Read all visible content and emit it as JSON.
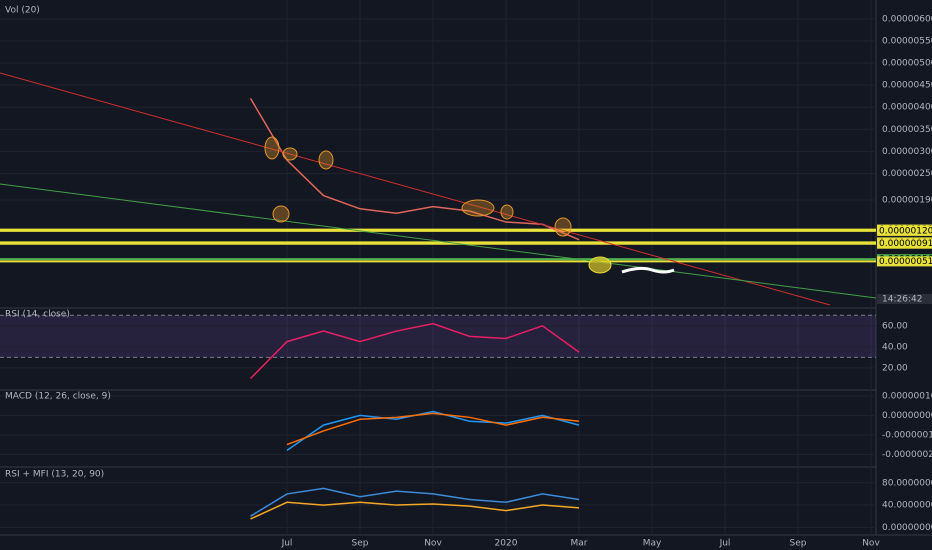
{
  "chart_data": [
    {
      "type": "line",
      "title": "Vol (20)",
      "countdown": "14:26:42",
      "categories": [
        null,
        "Jul",
        null,
        "Sep",
        null,
        "Nov",
        null,
        "2020",
        null,
        "Mar",
        null,
        "May",
        null,
        "Jul",
        null,
        "Sep",
        null,
        "Nov"
      ],
      "series": [
        {
          "color": "#e0665a",
          "values": [
            4.2e-06,
            2.8e-06,
            2e-06,
            1.7e-06,
            1.6e-06,
            1.75e-06,
            1.65e-06,
            1.4e-06,
            1.35e-06,
            1e-06,
            null,
            null,
            null,
            null,
            null,
            null,
            null,
            null
          ]
        }
      ],
      "ylim": [
        -5e-07,
        6.2e-06
      ],
      "yticks": [
        {
          "value": 6e-06,
          "label": "0.00000600"
        },
        {
          "value": 5.5e-06,
          "label": "0.00000550"
        },
        {
          "value": 5e-06,
          "label": "0.00000500"
        },
        {
          "value": 4.5e-06,
          "label": "0.00000450"
        },
        {
          "value": 4e-06,
          "label": "0.00000400"
        },
        {
          "value": 3.5e-06,
          "label": "0.00000350"
        },
        {
          "value": 3e-06,
          "label": "0.00000300"
        },
        {
          "value": 2.5e-06,
          "label": "0.00000250"
        },
        {
          "value": 1.9e-06,
          "label": "0.00000190"
        }
      ],
      "levels": [
        {
          "value": 1.23e-06,
          "label": "0.00000123",
          "color": "#e8e13a"
        },
        {
          "value": 1.2e-06,
          "label": "0.00000120",
          "color": "#e8e13a"
        },
        {
          "value": 9.4e-07,
          "label": "0.00000094",
          "color": "#e8e13a"
        },
        {
          "value": 9.1e-07,
          "label": "0.00000091",
          "color": "#e8e13a"
        },
        {
          "value": 5.6e-07,
          "label": "0.00000056",
          "color": "#4caf50"
        },
        {
          "value": 5.1e-07,
          "label": "0.00000051",
          "color": "#e8e13a"
        }
      ],
      "grid": true
    },
    {
      "type": "line",
      "title": "RSI (14, close)",
      "series": [
        {
          "color": "#e91e63",
          "values": [
            10,
            45,
            55,
            45,
            55,
            62,
            50,
            48,
            60,
            35,
            null,
            null,
            null,
            null,
            null,
            null,
            null,
            null
          ]
        }
      ],
      "ylim": [
        0,
        75
      ],
      "yticks": [
        {
          "value": 20,
          "label": "20.00"
        },
        {
          "value": 40,
          "label": "40.00"
        },
        {
          "value": 60,
          "label": "60.00"
        }
      ],
      "band": [
        30,
        70
      ],
      "grid": true
    },
    {
      "type": "line",
      "title": "MACD (12, 26, close, 9)",
      "series": [
        {
          "color": "#2196f3",
          "values": [
            null,
            -1.8e-07,
            -5e-08,
            0,
            -2e-08,
            2e-08,
            -3e-08,
            -4e-08,
            0,
            -5e-08,
            null,
            null,
            null,
            null,
            null,
            null,
            null,
            null
          ]
        },
        {
          "color": "#ff6d00",
          "values": [
            null,
            -1.5e-07,
            -8e-08,
            -2e-08,
            -1e-08,
            1e-08,
            -1e-08,
            -5e-08,
            -1e-08,
            -3e-08,
            null,
            null,
            null,
            null,
            null,
            null,
            null,
            null
          ]
        }
      ],
      "ylim": [
        -2.6e-07,
        1.2e-07
      ],
      "yticks": [
        {
          "value": 1e-07,
          "label": "0.00000010"
        },
        {
          "value": 0,
          "label": "0.00000000"
        },
        {
          "value": -1e-07,
          "label": "-0.00000010"
        },
        {
          "value": -2e-07,
          "label": "-0.00000020"
        }
      ],
      "grid": true
    },
    {
      "type": "line",
      "title": "RSI + MFI (13, 20, 90)",
      "series": [
        {
          "color": "#3d8bd9",
          "values": [
            20,
            60,
            70,
            55,
            65,
            60,
            50,
            45,
            60,
            50,
            null,
            null,
            null,
            null,
            null,
            null,
            null,
            null
          ]
        },
        {
          "color": "#f5a623",
          "values": [
            15,
            45,
            40,
            45,
            40,
            42,
            38,
            30,
            40,
            35,
            null,
            null,
            null,
            null,
            null,
            null,
            null,
            null
          ]
        }
      ],
      "ylim": [
        -12,
        103
      ],
      "yticks": [
        {
          "value": 80,
          "label": "80.00000000"
        },
        {
          "value": 40,
          "label": "40.00000000"
        },
        {
          "value": 0,
          "label": "0.00000000"
        }
      ],
      "grid": true
    }
  ]
}
